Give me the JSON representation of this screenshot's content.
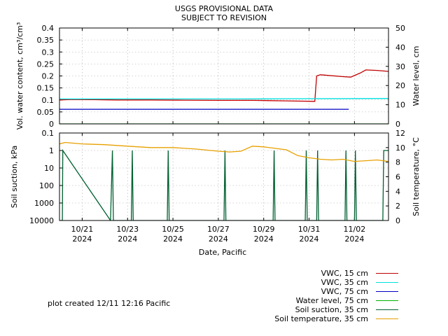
{
  "title_line1": "USGS PROVISIONAL DATA",
  "title_line2": "SUBJECT TO REVISION",
  "note": "plot created 12/11 12:16 Pacific",
  "xlabel": "Date, Pacific",
  "chart_data": [
    {
      "type": "line",
      "panel": "top",
      "ylabel_left": "Vol. water content, cm³/cm³",
      "ylabel_right": "Water level, cm",
      "ylim_left": [
        0,
        0.4
      ],
      "ylim_right": [
        0,
        50
      ],
      "yticks_left": [
        "0",
        "0.05",
        "0.1",
        "0.15",
        "0.2",
        "0.25",
        "0.3",
        "0.35",
        "0.4"
      ],
      "yticks_right": [
        "0",
        "10",
        "20",
        "30",
        "40",
        "50"
      ],
      "xlim": [
        "2024-10-20T00:00",
        "2024-11-03T12:00"
      ],
      "grid": true,
      "series": [
        {
          "name": "VWC, 15 cm",
          "color": "#c00000",
          "axis": "left",
          "x": [
            "2024-10-20T00:00",
            "2024-10-20T12:00",
            "2024-10-21T12:00",
            "2024-10-22T12:00",
            "2024-10-24T00:00",
            "2024-10-25T12:00",
            "2024-10-27T00:00",
            "2024-10-28T12:00",
            "2024-10-30T00:00",
            "2024-10-31T06:00",
            "2024-10-31T08:00",
            "2024-10-31T12:00",
            "2024-11-01T12:00",
            "2024-11-01T20:00",
            "2024-11-02T06:00",
            "2024-11-02T12:00",
            "2024-11-03T00:00",
            "2024-11-03T12:00"
          ],
          "y": [
            0.1,
            0.102,
            0.101,
            0.1,
            0.1,
            0.099,
            0.098,
            0.098,
            0.096,
            0.094,
            0.2,
            0.205,
            0.197,
            0.195,
            0.212,
            0.225,
            0.223,
            0.219
          ]
        },
        {
          "name": "VWC, 35 cm",
          "color": "#00e0e0",
          "axis": "left",
          "x": [
            "2024-10-20T00:00",
            "2024-10-28T00:00",
            "2024-10-30T00:00",
            "2024-11-03T12:00"
          ],
          "y": [
            0.104,
            0.104,
            0.105,
            0.106
          ]
        },
        {
          "name": "VWC, 75 cm",
          "color": "#0000c0",
          "axis": "left",
          "x": [
            "2024-10-20T00:00",
            "2024-10-25T00:00",
            "2024-10-30T00:00",
            "2024-11-01T18:00"
          ],
          "y": [
            0.061,
            0.061,
            0.061,
            0.061
          ]
        },
        {
          "name": "Water level, 75 cm",
          "color": "#00b000",
          "axis": "right",
          "x": [
            "2024-10-20T00:00",
            "2024-11-03T12:00"
          ],
          "y": [
            0,
            0
          ]
        }
      ]
    },
    {
      "type": "line",
      "panel": "bottom",
      "ylabel_left": "Soil suction, kPa",
      "ylabel_right": "Soil temperature, °C",
      "yscale_left": "log-inverted",
      "ylim_left": [
        0.1,
        10000
      ],
      "ylim_right": [
        0,
        12
      ],
      "yticks_left": [
        "0.1",
        "1",
        "10",
        "100",
        "1000",
        "10000"
      ],
      "yticks_right": [
        "0",
        "2",
        "4",
        "6",
        "8",
        "10",
        "12"
      ],
      "xticks": [
        {
          "x": "2024-10-21",
          "label": "10/21",
          "year": "2024"
        },
        {
          "x": "2024-10-23",
          "label": "10/23",
          "year": "2024"
        },
        {
          "x": "2024-10-25",
          "label": "10/25",
          "year": "2024"
        },
        {
          "x": "2024-10-27",
          "label": "10/27",
          "year": "2024"
        },
        {
          "x": "2024-10-29",
          "label": "10/29",
          "year": "2024"
        },
        {
          "x": "2024-10-31",
          "label": "10/31",
          "year": "2024"
        },
        {
          "x": "2024-11-02",
          "label": "11/02",
          "year": "2024"
        }
      ],
      "grid": true,
      "series": [
        {
          "name": "Soil suction, 35 cm",
          "color": "#006030",
          "axis": "left",
          "x": [
            "2024-10-20T00:00",
            "2024-10-20T03:00",
            "2024-10-20T03:30",
            "2024-10-22T06:00",
            "2024-10-22T08:00",
            "2024-10-22T09:00",
            "2024-10-23T04:00",
            "2024-10-23T05:00",
            "2024-10-23T06:00",
            "2024-10-24T18:00",
            "2024-10-24T19:00",
            "2024-10-24T20:00",
            "2024-10-27T06:00",
            "2024-10-27T07:00",
            "2024-10-27T08:00",
            "2024-10-29T10:00",
            "2024-10-29T11:00",
            "2024-10-29T12:00",
            "2024-10-30T20:00",
            "2024-10-30T21:00",
            "2024-10-30T22:00",
            "2024-10-31T08:00",
            "2024-10-31T09:00",
            "2024-10-31T10:00",
            "2024-11-01T14:00",
            "2024-11-01T15:00",
            "2024-11-01T16:00",
            "2024-11-02T00:00",
            "2024-11-02T01:00",
            "2024-11-02T02:00",
            "2024-11-03T06:00",
            "2024-11-03T07:00",
            "2024-11-03T12:00"
          ],
          "y": [
            10000,
            10000,
            1,
            10000,
            1,
            10000,
            10000,
            1,
            10000,
            10000,
            1,
            10000,
            10000,
            1,
            10000,
            10000,
            1,
            10000,
            10000,
            1,
            10000,
            10000,
            1,
            10000,
            10000,
            1,
            10000,
            10000,
            1,
            10000,
            10000,
            1,
            1
          ]
        },
        {
          "name": "Soil temperature, 35 cm",
          "color": "#e8a000",
          "axis": "right",
          "x": [
            "2024-10-20T00:00",
            "2024-10-20T06:00",
            "2024-10-21T00:00",
            "2024-10-22T00:00",
            "2024-10-23T00:00",
            "2024-10-24T00:00",
            "2024-10-25T00:00",
            "2024-10-26T00:00",
            "2024-10-27T00:00",
            "2024-10-27T12:00",
            "2024-10-28T00:00",
            "2024-10-28T12:00",
            "2024-10-29T00:00",
            "2024-10-30T00:00",
            "2024-10-30T12:00",
            "2024-10-31T00:00",
            "2024-10-31T12:00",
            "2024-11-01T00:00",
            "2024-11-01T12:00",
            "2024-11-02T00:00",
            "2024-11-02T12:00",
            "2024-11-03T00:00",
            "2024-11-03T12:00"
          ],
          "y": [
            10.5,
            10.7,
            10.5,
            10.4,
            10.2,
            10.0,
            10.0,
            9.8,
            9.5,
            9.4,
            9.5,
            10.2,
            10.1,
            9.7,
            8.9,
            8.6,
            8.4,
            8.3,
            8.4,
            8.1,
            8.2,
            8.3,
            8.1
          ]
        }
      ]
    }
  ],
  "legend": [
    {
      "label": "VWC, 15 cm",
      "color": "#c00000"
    },
    {
      "label": "VWC, 35 cm",
      "color": "#00e0e0"
    },
    {
      "label": "VWC, 75 cm",
      "color": "#0000c0"
    },
    {
      "label": "Water level, 75 cm",
      "color": "#00b000"
    },
    {
      "label": "Soil suction, 35 cm",
      "color": "#006030"
    },
    {
      "label": "Soil temperature, 35 cm",
      "color": "#e8a000"
    }
  ]
}
